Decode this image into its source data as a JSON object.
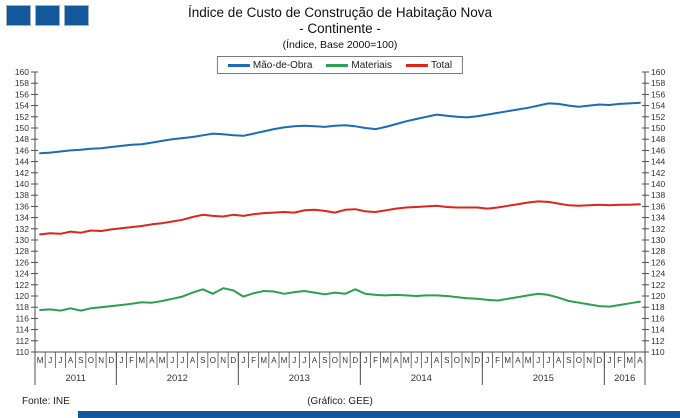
{
  "header": {
    "title_line1": "Índice de Custo de Construção de Habitação Nova",
    "title_line2": "- Continente -",
    "title_line3": "(Índice, Base 2000=100)",
    "logo_color": "#14589C"
  },
  "legend": {
    "items": [
      {
        "label": "Mão-de-Obra",
        "color": "#1B6CB5"
      },
      {
        "label": "Materiais",
        "color": "#2CA052"
      },
      {
        "label": "Total",
        "color": "#DC251B"
      }
    ]
  },
  "chart_data": {
    "type": "line",
    "title": "Índice de Custo de Construção de Habitação Nova - Continente",
    "xlabel": "",
    "ylabel": "",
    "ylim": [
      110,
      160
    ],
    "ytick_step": 2,
    "yticks": [
      110,
      112,
      114,
      116,
      118,
      120,
      122,
      124,
      126,
      128,
      130,
      132,
      134,
      136,
      138,
      140,
      142,
      144,
      146,
      148,
      150,
      152,
      154,
      156,
      158,
      160
    ],
    "grid": false,
    "legend_position": "top-center",
    "x_month_labels": [
      "M",
      "J",
      "J",
      "A",
      "S",
      "O",
      "N",
      "D",
      "J",
      "F",
      "M",
      "A",
      "M",
      "J",
      "J",
      "A",
      "S",
      "O",
      "N",
      "D",
      "J",
      "F",
      "M",
      "A",
      "M",
      "J",
      "J",
      "A",
      "S",
      "O",
      "N",
      "D",
      "J",
      "F",
      "M",
      "A",
      "M",
      "J",
      "J",
      "A",
      "S",
      "O",
      "N",
      "D",
      "J",
      "F",
      "M",
      "A",
      "M",
      "J",
      "J",
      "A",
      "S",
      "O",
      "N",
      "D",
      "J",
      "F",
      "M",
      "A"
    ],
    "years": [
      {
        "label": "2011",
        "months": 8
      },
      {
        "label": "2012",
        "months": 12
      },
      {
        "label": "2013",
        "months": 12
      },
      {
        "label": "2014",
        "months": 12
      },
      {
        "label": "2015",
        "months": 12
      },
      {
        "label": "2016",
        "months": 4
      }
    ],
    "series": [
      {
        "name": "Mão-de-Obra",
        "color": "#1B6CB5",
        "values": [
          145.5,
          145.6,
          145.8,
          146.0,
          146.1,
          146.3,
          146.4,
          146.6,
          146.8,
          147.0,
          147.1,
          147.4,
          147.7,
          148.0,
          148.2,
          148.4,
          148.7,
          149.0,
          148.9,
          148.7,
          148.6,
          149.0,
          149.4,
          149.8,
          150.1,
          150.3,
          150.4,
          150.3,
          150.2,
          150.4,
          150.5,
          150.3,
          150.0,
          149.8,
          150.2,
          150.7,
          151.2,
          151.6,
          152.0,
          152.4,
          152.2,
          152.0,
          151.9,
          152.1,
          152.4,
          152.7,
          153.0,
          153.3,
          153.6,
          154.0,
          154.4,
          154.3,
          154.0,
          153.8,
          154.0,
          154.2,
          154.1,
          154.3,
          154.4,
          154.5
        ]
      },
      {
        "name": "Materiais",
        "color": "#2CA052",
        "values": [
          117.5,
          117.6,
          117.4,
          117.8,
          117.4,
          117.8,
          118.0,
          118.2,
          118.4,
          118.6,
          118.9,
          118.8,
          119.1,
          119.5,
          119.9,
          120.6,
          121.2,
          120.4,
          121.4,
          121.0,
          119.9,
          120.5,
          120.9,
          120.8,
          120.4,
          120.7,
          120.9,
          120.6,
          120.3,
          120.6,
          120.4,
          121.2,
          120.4,
          120.2,
          120.1,
          120.2,
          120.1,
          120.0,
          120.1,
          120.1,
          120.0,
          119.8,
          119.6,
          119.5,
          119.3,
          119.2,
          119.5,
          119.8,
          120.1,
          120.4,
          120.2,
          119.7,
          119.1,
          118.8,
          118.5,
          118.2,
          118.1,
          118.4,
          118.7,
          119.0
        ]
      },
      {
        "name": "Total",
        "color": "#DC251B",
        "values": [
          131.0,
          131.2,
          131.1,
          131.5,
          131.3,
          131.7,
          131.6,
          131.9,
          132.1,
          132.3,
          132.5,
          132.8,
          133.0,
          133.3,
          133.6,
          134.1,
          134.5,
          134.3,
          134.2,
          134.5,
          134.3,
          134.6,
          134.8,
          134.9,
          135.0,
          134.9,
          135.3,
          135.4,
          135.2,
          134.9,
          135.4,
          135.5,
          135.1,
          135.0,
          135.3,
          135.6,
          135.8,
          135.9,
          136.0,
          136.1,
          135.9,
          135.8,
          135.8,
          135.8,
          135.6,
          135.8,
          136.1,
          136.4,
          136.7,
          136.9,
          136.8,
          136.5,
          136.2,
          136.1,
          136.2,
          136.3,
          136.2,
          136.3,
          136.3,
          136.4
        ]
      }
    ]
  },
  "footer": {
    "source": "Fonte: INE",
    "credit": "(Gráfico: GEE)"
  }
}
